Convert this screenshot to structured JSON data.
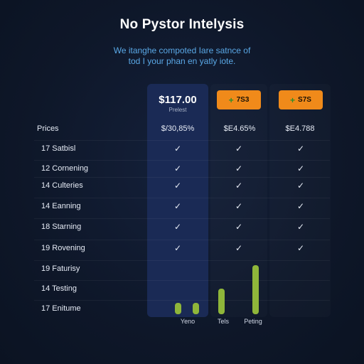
{
  "header": {
    "title": "No Pystor Intelysis",
    "subtitle_line1": "We itanghe compoted Iare satnce of",
    "subtitle_line2": "tod I your phan en yatly iote."
  },
  "plans": {
    "highlight_price": "$117.00",
    "highlight_sub": "Prelest",
    "badge_1": "7S3",
    "badge_2": "S7S",
    "badge_plus": "+"
  },
  "table": {
    "head_label": "Prices",
    "prices": [
      "$/30,85%",
      "$E4.65%",
      "$E4.788"
    ],
    "rows": [
      {
        "label": "17  Satbisl",
        "checks": [
          true,
          true,
          true
        ]
      },
      {
        "label": "12  Cornening",
        "checks": [
          true,
          true,
          true
        ]
      },
      {
        "label": "14  Culteries",
        "checks": [
          true,
          true,
          true
        ]
      },
      {
        "label": "14  Eanning",
        "checks": [
          true,
          true,
          true
        ]
      },
      {
        "label": "18  Starning",
        "checks": [
          true,
          true,
          true
        ]
      },
      {
        "label": "19  Rovening",
        "checks": [
          true,
          true,
          true
        ]
      },
      {
        "label": "19  Faturisy",
        "checks": [
          false,
          false,
          false
        ]
      },
      {
        "label": "14  Testing",
        "checks": [
          false,
          false,
          false
        ]
      },
      {
        "label": "17  Enitume",
        "checks": [
          false,
          false,
          false
        ]
      }
    ],
    "check_glyph": "✓"
  },
  "mini_chart": {
    "labels": [
      "Yeno",
      "Tels",
      "Peting"
    ],
    "accent": "#8fb63a"
  }
}
